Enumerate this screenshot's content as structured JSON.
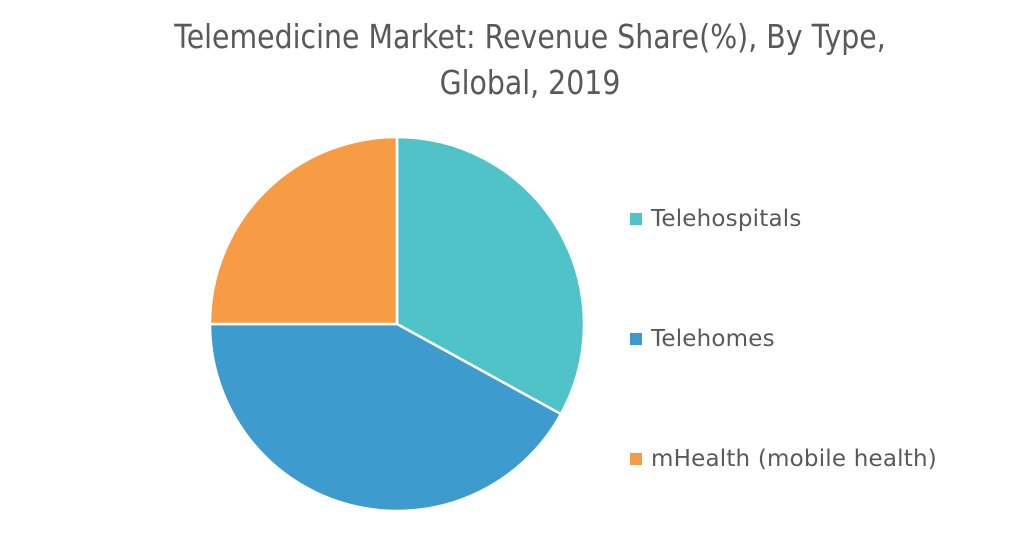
{
  "chart_data": {
    "type": "pie",
    "title": "Telemedicine Market: Revenue Share(%), By Type, Global, 2019",
    "title_lines": [
      "Telemedicine Market: Revenue Share(%), By Type,",
      "Global, 2019"
    ],
    "categories": [
      "Telehospitals",
      "Telehomes",
      "mHealth (mobile health)"
    ],
    "values": [
      33,
      42,
      25
    ],
    "unit": "%",
    "colors": [
      "#4fc3c7",
      "#3d9bce",
      "#f79c45"
    ],
    "start_angle": "12 o'clock",
    "direction": "clockwise",
    "legend_position": "right",
    "data_labels": false
  }
}
